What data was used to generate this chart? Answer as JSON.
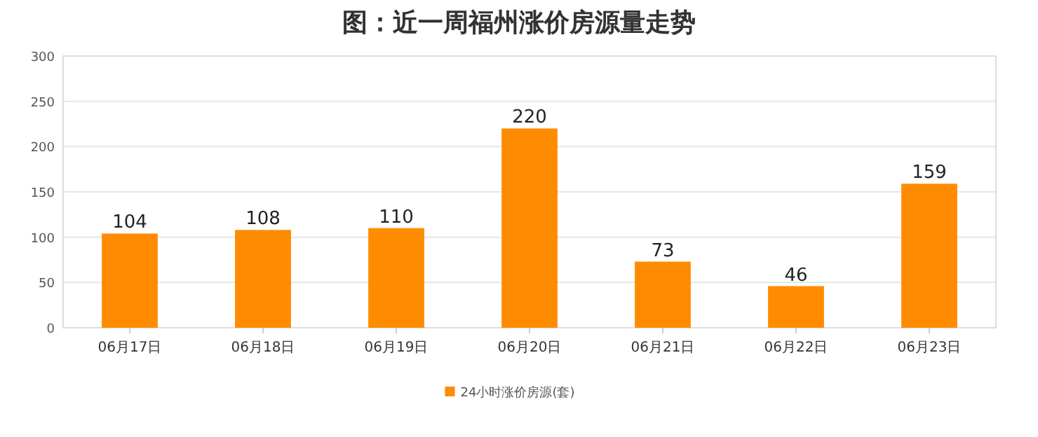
{
  "chart_data": {
    "type": "bar",
    "title": "图：近一周福州涨价房源量走势",
    "categories": [
      "06月17日",
      "06月18日",
      "06月19日",
      "06月20日",
      "06月21日",
      "06月22日",
      "06月23日"
    ],
    "series": [
      {
        "name": "24小时涨价房源(套)",
        "color": "#ff8c00",
        "values": [
          104,
          108,
          110,
          220,
          73,
          46,
          159
        ]
      }
    ],
    "ylim": [
      0,
      300
    ],
    "yticks": [
      0,
      50,
      100,
      150,
      200,
      250,
      300
    ],
    "grid": "y",
    "legend": "bottom",
    "data_labels": true
  }
}
